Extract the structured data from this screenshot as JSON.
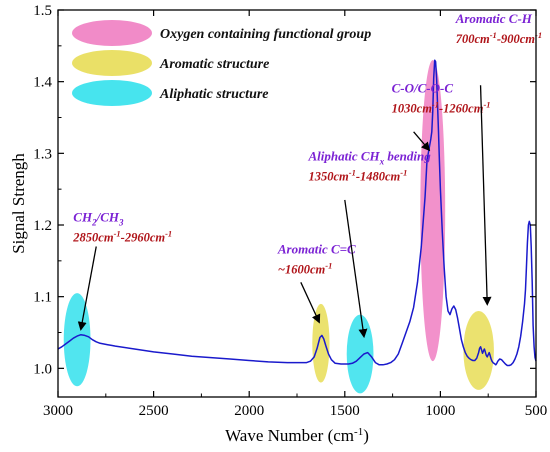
{
  "chart_data": {
    "type": "line",
    "xlabel": "Wave Number (cm",
    "xlabel_sup": "-1",
    "xlabel_tail": ")",
    "ylabel": "Signal Strengh",
    "xlim": [
      3000,
      500
    ],
    "ylim": [
      0.96,
      1.5
    ],
    "x_ticks": [
      3000,
      2500,
      2000,
      1500,
      1000,
      500
    ],
    "x_tick_labels": [
      "3000",
      "2500",
      "2000",
      "1500",
      "1000",
      "500"
    ],
    "y_ticks": [
      1.0,
      1.1,
      1.2,
      1.3,
      1.4,
      1.5
    ],
    "y_tick_labels": [
      "1.0",
      "1.1",
      "1.2",
      "1.3",
      "1.4",
      "1.5"
    ],
    "grid": false,
    "line_color": "#1a1acc",
    "series": [
      {
        "x": [
          3000,
          2980,
          2960,
          2940,
          2920,
          2900,
          2880,
          2860,
          2840,
          2820,
          2800,
          2780,
          2760,
          2740,
          2720,
          2700,
          2600,
          2500,
          2400,
          2300,
          2200,
          2100,
          2000,
          1900,
          1800,
          1750,
          1700,
          1680,
          1660,
          1645,
          1630,
          1620,
          1610,
          1600,
          1585,
          1570,
          1550,
          1520,
          1500,
          1480,
          1460,
          1440,
          1420,
          1400,
          1380,
          1360,
          1340,
          1320,
          1300,
          1280,
          1260,
          1240,
          1220,
          1200,
          1180,
          1160,
          1140,
          1120,
          1100,
          1080,
          1070,
          1060,
          1050,
          1045,
          1040,
          1035,
          1030,
          1025,
          1020,
          1015,
          1010,
          1005,
          1000,
          990,
          980,
          970,
          960,
          950,
          940,
          930,
          920,
          910,
          900,
          890,
          880,
          870,
          860,
          850,
          840,
          830,
          820,
          810,
          800,
          795,
          790,
          785,
          780,
          775,
          770,
          765,
          760,
          755,
          750,
          745,
          740,
          735,
          730,
          725,
          720,
          715,
          710,
          705,
          700,
          690,
          680,
          670,
          660,
          650,
          640,
          630,
          620,
          610,
          600,
          590,
          580,
          570,
          560,
          555,
          550,
          545,
          540,
          535,
          530,
          525,
          520,
          515,
          510,
          505,
          500
        ],
        "y": [
          1.027,
          1.03,
          1.034,
          1.038,
          1.042,
          1.045,
          1.047,
          1.046,
          1.044,
          1.04,
          1.037,
          1.035,
          1.034,
          1.033,
          1.032,
          1.031,
          1.027,
          1.023,
          1.02,
          1.017,
          1.015,
          1.013,
          1.011,
          1.009,
          1.008,
          1.008,
          1.008,
          1.01,
          1.016,
          1.028,
          1.043,
          1.046,
          1.041,
          1.032,
          1.02,
          1.012,
          1.007,
          1.006,
          1.006,
          1.006,
          1.007,
          1.01,
          1.015,
          1.02,
          1.022,
          1.016,
          1.008,
          1.005,
          1.005,
          1.006,
          1.008,
          1.012,
          1.02,
          1.035,
          1.05,
          1.065,
          1.085,
          1.12,
          1.17,
          1.24,
          1.29,
          1.305,
          1.32,
          1.33,
          1.36,
          1.405,
          1.43,
          1.428,
          1.405,
          1.37,
          1.33,
          1.29,
          1.25,
          1.19,
          1.14,
          1.1,
          1.08,
          1.075,
          1.083,
          1.087,
          1.082,
          1.07,
          1.055,
          1.04,
          1.03,
          1.022,
          1.017,
          1.014,
          1.012,
          1.011,
          1.011,
          1.014,
          1.022,
          1.028,
          1.03,
          1.026,
          1.021,
          1.024,
          1.027,
          1.023,
          1.018,
          1.016,
          1.019,
          1.022,
          1.018,
          1.013,
          1.01,
          1.008,
          1.007,
          1.006,
          1.005,
          1.007,
          1.01,
          1.013,
          1.012,
          1.009,
          1.006,
          1.004,
          1.004,
          1.005,
          1.008,
          1.013,
          1.02,
          1.03,
          1.045,
          1.065,
          1.09,
          1.11,
          1.14,
          1.175,
          1.2,
          1.205,
          1.2,
          1.17,
          1.12,
          1.06,
          1.03,
          1.015,
          1.01
        ]
      }
    ],
    "legend": {
      "placement": "top-left",
      "entries": [
        {
          "label": "Oxygen containing functional group",
          "color": "#f07ec2"
        },
        {
          "label": "Aromatic structure",
          "color": "#e8dd56"
        },
        {
          "label": "Aliphatic structure",
          "color": "#33e1ec"
        }
      ]
    },
    "highlights": [
      {
        "center": 2900,
        "y": 1.04,
        "width_cm": 140,
        "height": 0.13,
        "color": "#33e1ec"
      },
      {
        "center": 1625,
        "y": 1.035,
        "width_cm": 90,
        "height": 0.11,
        "color": "#e8dd56"
      },
      {
        "center": 1420,
        "y": 1.02,
        "width_cm": 140,
        "height": 0.11,
        "color": "#33e1ec"
      },
      {
        "center": 1040,
        "y": 1.22,
        "width_cm": 130,
        "height": 0.42,
        "color": "#f07ec2"
      },
      {
        "center": 800,
        "y": 1.025,
        "width_cm": 160,
        "height": 0.11,
        "color": "#e8dd56"
      }
    ],
    "annotations": [
      {
        "title": "CH",
        "title_sub1": "2",
        "title_mid": "/CH",
        "title_sub2": "3",
        "range": "2850cm",
        "range_sup": "-1",
        "range_mid": "-2960cm",
        "range_sup2": "-1",
        "at_x": 2880,
        "text_x": 2920,
        "text_y": 1.205,
        "point": [
          2880,
          1.055
        ],
        "arrow_from": [
          2800,
          1.17
        ]
      },
      {
        "title": "Aromatic C=C",
        "range": "~1600cm",
        "range_sup": "-1",
        "at_x": 1630,
        "text_x": 1850,
        "text_y": 1.16,
        "point": [
          1635,
          1.065
        ],
        "arrow_from": [
          1730,
          1.12
        ]
      },
      {
        "title": "Aliphatic CH",
        "title_sub1": "x",
        "title_tail": " bending",
        "range": "1350cm",
        "range_sup": "-1",
        "range_mid": "-1480cm",
        "range_sup2": "-1",
        "at_x": 1420,
        "text_x": 1690,
        "text_y": 1.29,
        "point": [
          1400,
          1.045
        ],
        "arrow_from": [
          1500,
          1.235
        ]
      },
      {
        "title": "C-O/C-O-C",
        "range": "1030cm",
        "range_sup": "-1",
        "range_mid": "-1260cm",
        "range_sup2": "-1",
        "at_x": 1140,
        "text_x": 1255,
        "text_y": 1.385,
        "point": [
          1060,
          1.305
        ],
        "arrow_from": [
          1140,
          1.33
        ]
      },
      {
        "title": "Aromatic C-H",
        "range": "700cm",
        "range_sup": "-1",
        "range_mid": "-900cm",
        "range_sup2": "-1",
        "at_x": 780,
        "text_x": 920,
        "text_y": 1.482,
        "point": [
          755,
          1.09
        ],
        "arrow_from": [
          790,
          1.395
        ]
      }
    ]
  }
}
